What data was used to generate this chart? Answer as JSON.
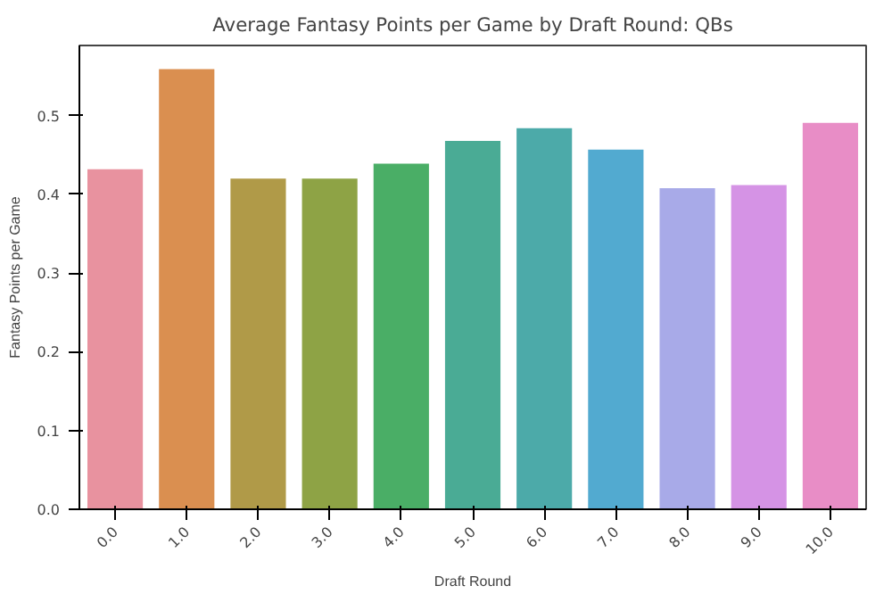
{
  "chart_data": {
    "type": "bar",
    "title": "Average Fantasy Points per Game by Draft Round: QBs",
    "xlabel": "Draft Round",
    "ylabel": "Fantasy Points per Game",
    "categories": [
      "0.0",
      "1.0",
      "2.0",
      "3.0",
      "4.0",
      "5.0",
      "6.0",
      "7.0",
      "8.0",
      "9.0",
      "10.0"
    ],
    "values": [
      0.433,
      0.56,
      0.421,
      0.421,
      0.44,
      0.469,
      0.485,
      0.458,
      0.409,
      0.413,
      0.492
    ],
    "colors": [
      "#e8929f",
      "#da8f50",
      "#b09a48",
      "#8ea345",
      "#4aae66",
      "#4aab95",
      "#4caaa9",
      "#52aad0",
      "#a8aae8",
      "#d593e5",
      "#e88dc6"
    ],
    "ylim": [
      0,
      0.589
    ],
    "yticks": [
      {
        "value": 0,
        "label": "0.0"
      },
      0.1,
      0.2,
      0.3,
      0.4,
      0.5
    ],
    "grid": false
  }
}
